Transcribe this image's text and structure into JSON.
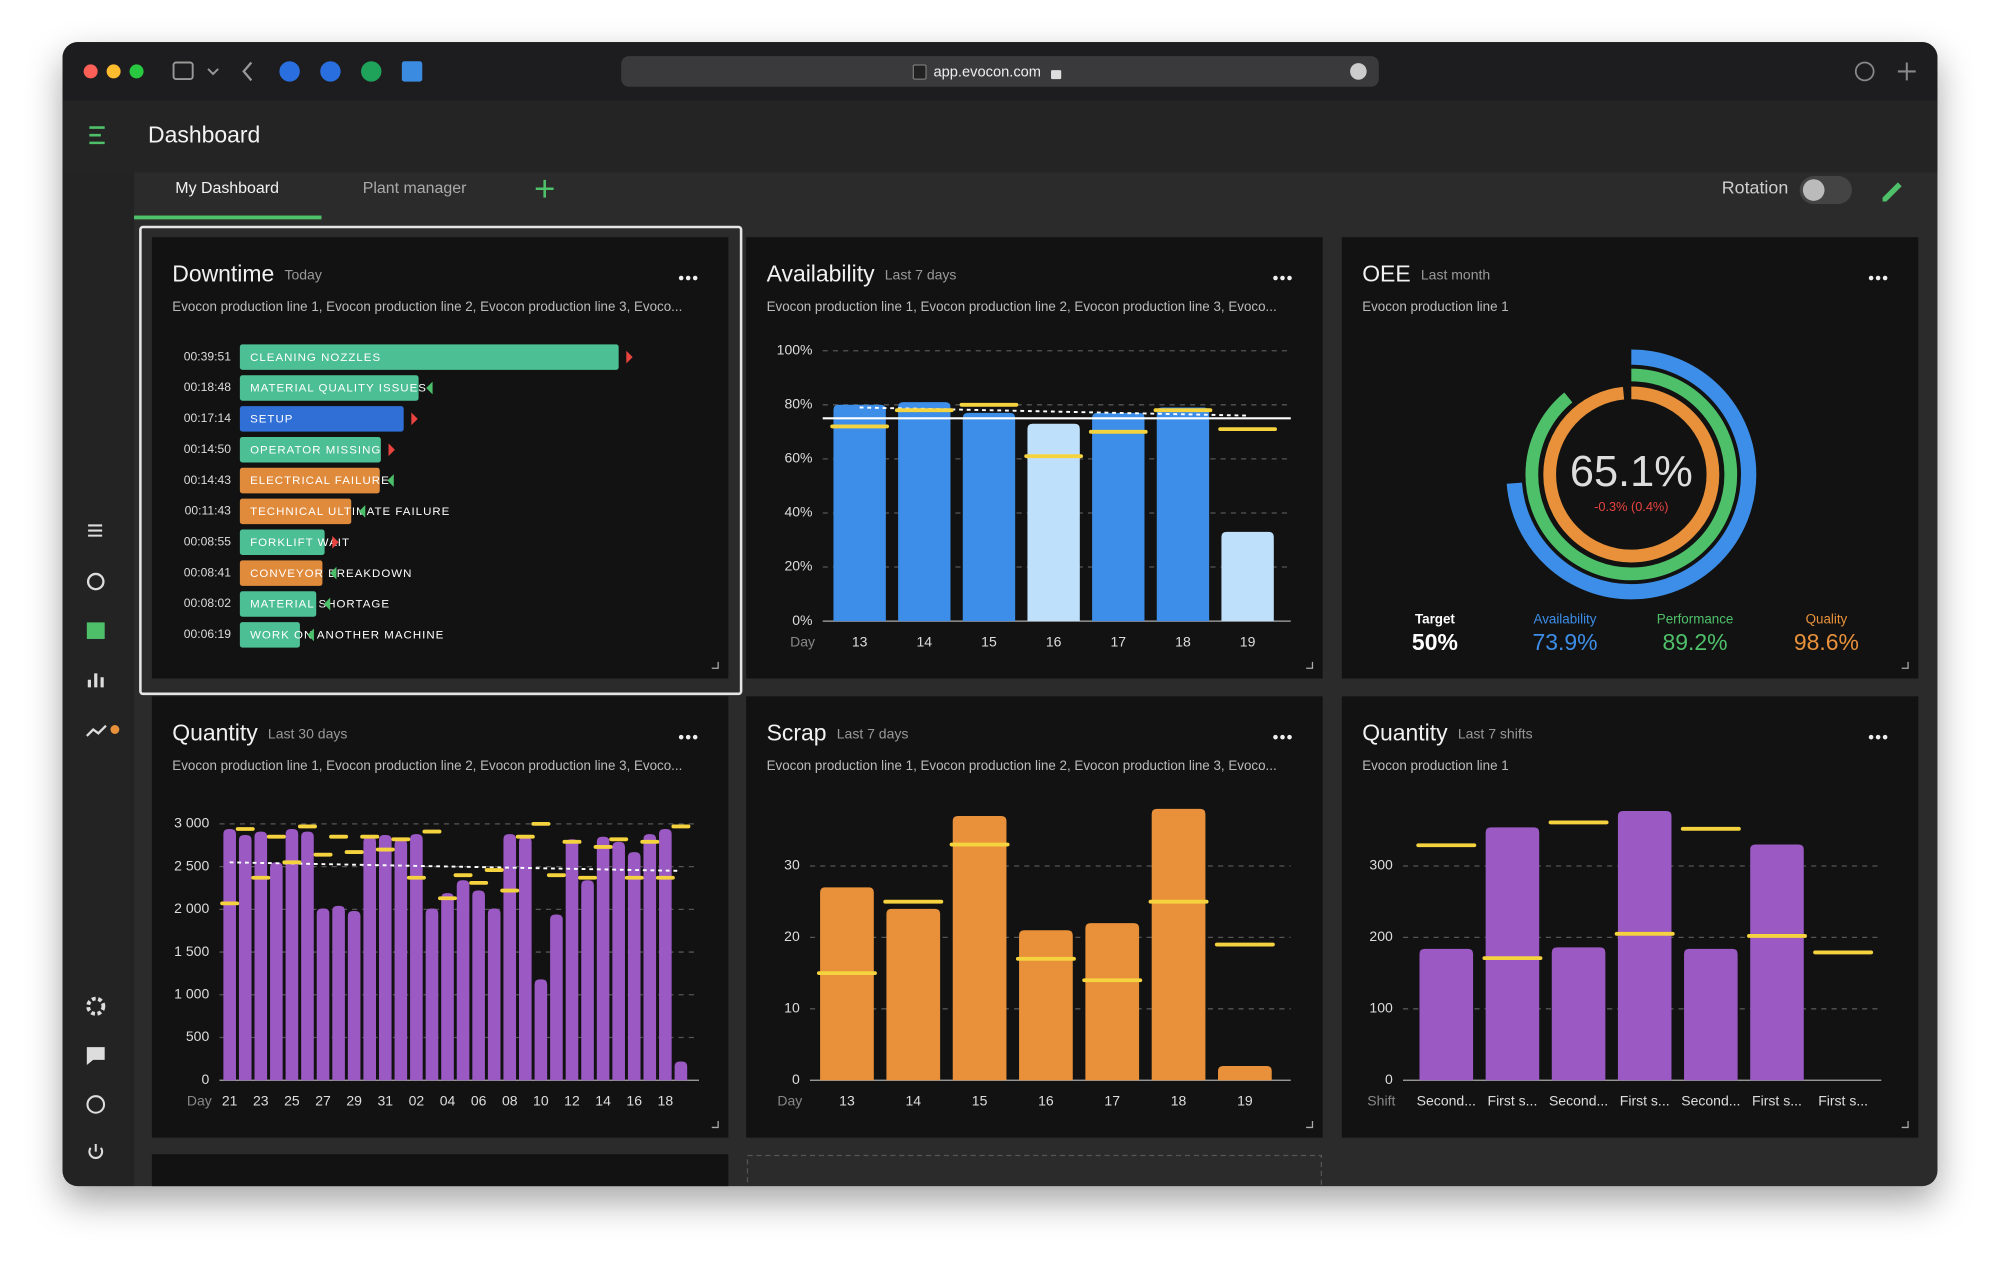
{
  "browser": {
    "url": "app.evocon.com"
  },
  "header": {
    "title": "Dashboard"
  },
  "tabs": [
    "My Dashboard",
    "Plant manager"
  ],
  "rotation_label": "Rotation",
  "widgets": [
    {
      "title": "Downtime",
      "period": "Today",
      "description": "Evocon production line 1, Evocon production line 2, Evocon production line 3, Evoco...",
      "chart": {
        "type": "hbar",
        "categories": [
          "CLEANING NOZZLES",
          "MATERIAL QUALITY ISSUES",
          "SETUP",
          "OPERATOR MISSING",
          "ELECTRICAL FAILURE",
          "TECHNICAL ULTIMATE FAILURE",
          "FORKLIFT WAIT",
          "CONVEYOR BREAKDOWN",
          "MATERIAL SHORTAGE",
          "WORK ON ANOTHER MACHINE"
        ],
        "values": [
          2391,
          1128,
          1034,
          890,
          883,
          703,
          535,
          521,
          482,
          379
        ],
        "value_labels": [
          "00:39:51",
          "00:18:48",
          "00:17:14",
          "00:14:50",
          "00:14:43",
          "00:11:43",
          "00:08:55",
          "00:08:41",
          "00:08:02",
          "00:06:19"
        ],
        "colors": [
          "#4cbf94",
          "#4cbf94",
          "#2f6fd6",
          "#4cbf94",
          "#e08a3c",
          "#e08a3c",
          "#4cbf94",
          "#e08a3c",
          "#4cbf94",
          "#4cbf94"
        ],
        "trend_colors": [
          "#e8433f",
          "#4cbf6a",
          "#e8433f",
          "#e8433f",
          "#4cbf6a",
          "#4cbf6a",
          "#e8433f",
          "#4cbf6a",
          "#4cbf6a",
          "#4cbf6a"
        ]
      }
    },
    {
      "title": "Availability",
      "period": "Last 7 days",
      "description": "Evocon production line 1, Evocon production line 2, Evocon production line 3, Evoco...",
      "chart": {
        "type": "bar",
        "x_label": "Day",
        "categories": [
          "13",
          "14",
          "15",
          "16",
          "17",
          "18",
          "19"
        ],
        "values": [
          80,
          81,
          77,
          73,
          77,
          79,
          33
        ],
        "colors": [
          "#3d8ee8",
          "#3d8ee8",
          "#3d8ee8",
          "#bfe0fb",
          "#3d8ee8",
          "#3d8ee8",
          "#bfe0fb"
        ],
        "targets": [
          72,
          78,
          80,
          61,
          70,
          78,
          71
        ],
        "target_color": "#f5d33f",
        "reference": 75,
        "trend": [
          79,
          76
        ],
        "ylim": [
          0,
          100
        ],
        "yticks": [
          {
            "value": 0,
            "label": "0%"
          },
          {
            "value": 20,
            "label": "20%"
          },
          {
            "value": 40,
            "label": "40%"
          },
          {
            "value": 60,
            "label": "60%"
          },
          {
            "value": 80,
            "label": "80%"
          },
          {
            "value": 100,
            "label": "100%"
          }
        ],
        "grid": true
      }
    },
    {
      "title": "OEE",
      "period": "Last month",
      "description": "Evocon production line 1",
      "chart": {
        "type": "rings",
        "value": 65.1,
        "value_label": "65.1%",
        "change_label": "-0.3% (0.4%)",
        "target_name": "Target",
        "target": 50,
        "target_label": "50%",
        "series": [
          {
            "name": "Availability",
            "color": "#3d8ee8",
            "value": 73.9,
            "value_label": "73.9%"
          },
          {
            "name": "Performance",
            "color": "#4fc06a",
            "value": 89.2,
            "value_label": "89.2%"
          },
          {
            "name": "Quality",
            "color": "#e8913a",
            "value": 98.6,
            "value_label": "98.6%"
          }
        ]
      }
    },
    {
      "title": "Quantity",
      "period": "Last 30 days",
      "description": "Evocon production line 1, Evocon production line 2, Evocon production line 3, Evoco...",
      "chart": {
        "type": "bar",
        "x_label": "Day",
        "categories": [
          "21",
          null,
          "23",
          null,
          "25",
          null,
          "27",
          null,
          "29",
          null,
          "31",
          null,
          "02",
          null,
          "04",
          null,
          "06",
          null,
          "08",
          null,
          "10",
          null,
          "12",
          null,
          "14",
          null,
          "16",
          null,
          "18",
          null
        ],
        "values": [
          2940,
          2870,
          2910,
          2550,
          2940,
          2910,
          2010,
          2040,
          1980,
          2850,
          2870,
          2820,
          2880,
          2010,
          2190,
          2340,
          2220,
          2010,
          2880,
          2850,
          1180,
          1940,
          2820,
          2340,
          2850,
          2790,
          2670,
          2880,
          2940,
          220
        ],
        "color": "#9b59c4",
        "targets": [
          2070,
          2940,
          2370,
          2850,
          2550,
          2970,
          2640,
          2850,
          2670,
          2850,
          2700,
          2820,
          2370,
          2910,
          2130,
          2400,
          2310,
          2460,
          2220,
          2850,
          3000,
          2400,
          2790,
          2370,
          2730,
          2820,
          2370,
          2790,
          2370,
          2970
        ],
        "target_color": "#f5d33f",
        "trend": [
          2550,
          2450
        ],
        "ylim": [
          0,
          3000
        ],
        "yticks": [
          0,
          500,
          {
            "value": 1000,
            "label": "1 000"
          },
          {
            "value": 1500,
            "label": "1 500"
          },
          {
            "value": 2000,
            "label": "2 000"
          },
          {
            "value": 2500,
            "label": "2 500"
          },
          {
            "value": 3000,
            "label": "3 000"
          }
        ],
        "grid": true
      }
    },
    {
      "title": "Scrap",
      "period": "Last 7 days",
      "description": "Evocon production line 1, Evocon production line 2, Evocon production line 3, Evoco...",
      "chart": {
        "type": "bar",
        "x_label": "Day",
        "categories": [
          "13",
          "14",
          "15",
          "16",
          "17",
          "18",
          "19"
        ],
        "values": [
          27,
          24,
          37,
          21,
          22,
          38,
          2
        ],
        "color": "#e8913a",
        "targets": [
          15,
          25,
          33,
          17,
          14,
          25,
          19
        ],
        "target_color": "#f5d33f",
        "ylim": [
          0,
          40
        ],
        "yticks": [
          0,
          10,
          20,
          30
        ],
        "grid": true
      }
    },
    {
      "title": "Quantity",
      "period": "Last 7 shifts",
      "description": "Evocon production line 1",
      "chart": {
        "type": "bar",
        "x_label": "Shift",
        "categories": [
          "Second...",
          "First s...",
          "Second...",
          "First s...",
          "Second...",
          "First s...",
          "First s..."
        ],
        "values": [
          184,
          354,
          186,
          377,
          184,
          330,
          0
        ],
        "color": "#9b59c4",
        "targets": [
          329,
          171,
          361,
          205,
          352,
          202,
          179
        ],
        "target_color": "#f5d33f",
        "ylim": [
          0,
          400
        ],
        "yticks": [
          0,
          100,
          200,
          300
        ],
        "grid": true
      }
    }
  ]
}
